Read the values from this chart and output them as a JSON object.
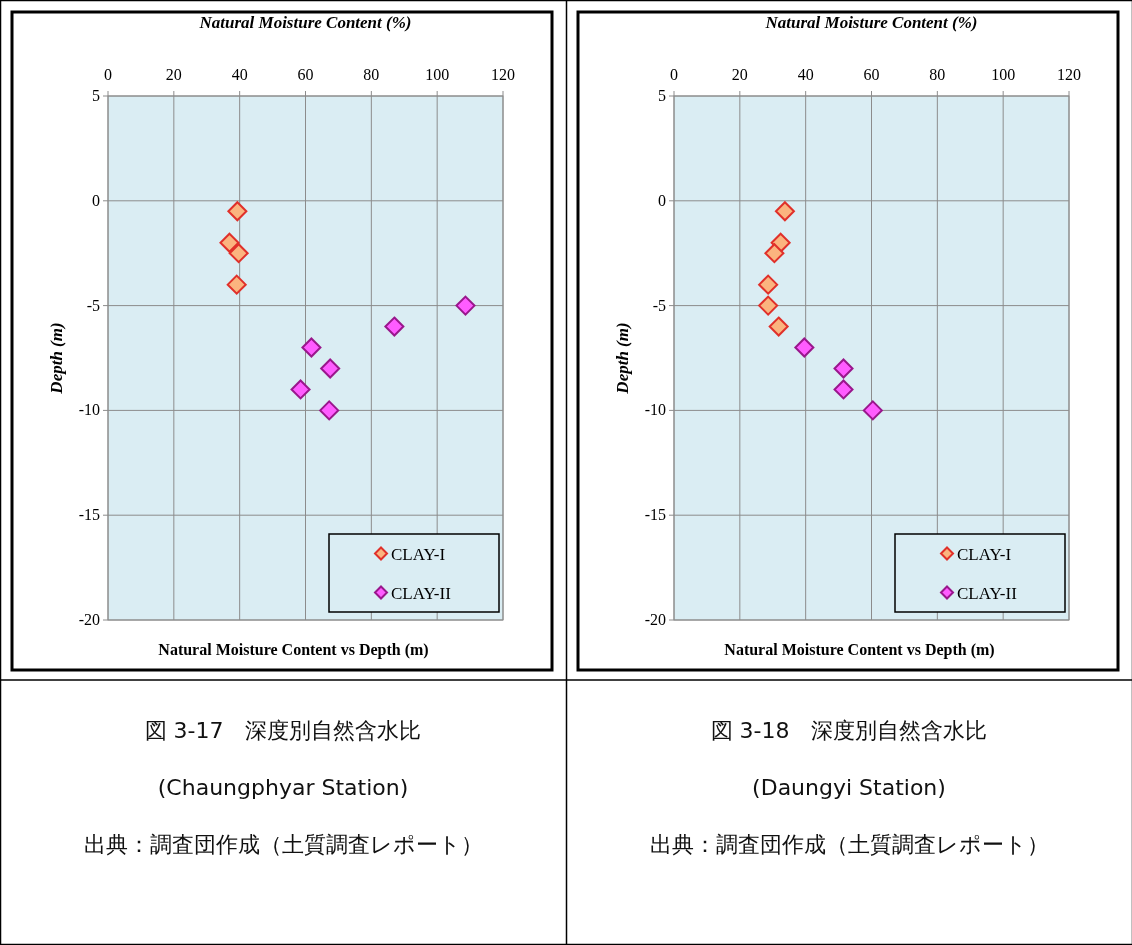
{
  "chart_data": [
    {
      "type": "scatter",
      "title": "Natural Moisture Content vs Depth (m)",
      "xlabel": "Natural Moisture Content (%)",
      "ylabel": "Depth (m)",
      "xlim": [
        0,
        120
      ],
      "xticks": [
        0,
        20,
        40,
        60,
        80,
        100,
        120
      ],
      "ylim": [
        -20,
        5
      ],
      "yticks": [
        -20,
        -15,
        -10,
        -5,
        0,
        5
      ],
      "grid": true,
      "legend": "bottom right",
      "marker": "diamond",
      "series": [
        {
          "name": "CLAY-I",
          "color": "#fbb47f",
          "x": [
            39.3,
            36.9,
            39.7,
            39.1
          ],
          "values": [
            -0.5,
            -2,
            -2.5,
            -4
          ]
        },
        {
          "name": "CLAY-II",
          "color": "#ff5cff",
          "x": [
            108.6,
            87,
            61.8,
            67.5,
            58.5,
            67.2
          ],
          "values": [
            -5,
            -6,
            -7,
            -8,
            -9,
            -10
          ]
        }
      ],
      "annotations": [
        "図 3-17　深度別自然含水比",
        "(Chaungphyar Station)",
        "出典：調査団作成（土質調査レポート）"
      ]
    },
    {
      "type": "scatter",
      "title": "Natural Moisture Content vs Depth (m)",
      "xlabel": "Natural Moisture Content (%)",
      "ylabel": "Depth (m)",
      "xlim": [
        0,
        120
      ],
      "xticks": [
        0,
        20,
        40,
        60,
        80,
        100,
        120
      ],
      "ylim": [
        -20,
        5
      ],
      "yticks": [
        -20,
        -15,
        -10,
        -5,
        0,
        5
      ],
      "grid": true,
      "legend": "bottom right",
      "marker": "diamond",
      "series": [
        {
          "name": "CLAY-I",
          "color": "#fbb47f",
          "x": [
            33.7,
            32.4,
            30.5,
            28.6,
            28.6,
            31.8
          ],
          "values": [
            -0.5,
            -2,
            -2.5,
            -4,
            -5,
            -6
          ]
        },
        {
          "name": "CLAY-II",
          "color": "#ff5cff",
          "x": [
            39.6,
            51.5,
            51.5,
            60.4
          ],
          "values": [
            -7,
            -8,
            -9,
            -10
          ]
        }
      ],
      "annotations": [
        "図 3-18　深度別自然含水比",
        "(Daungyi Station)",
        "出典：調査団作成（土質調査レポート）"
      ]
    }
  ]
}
